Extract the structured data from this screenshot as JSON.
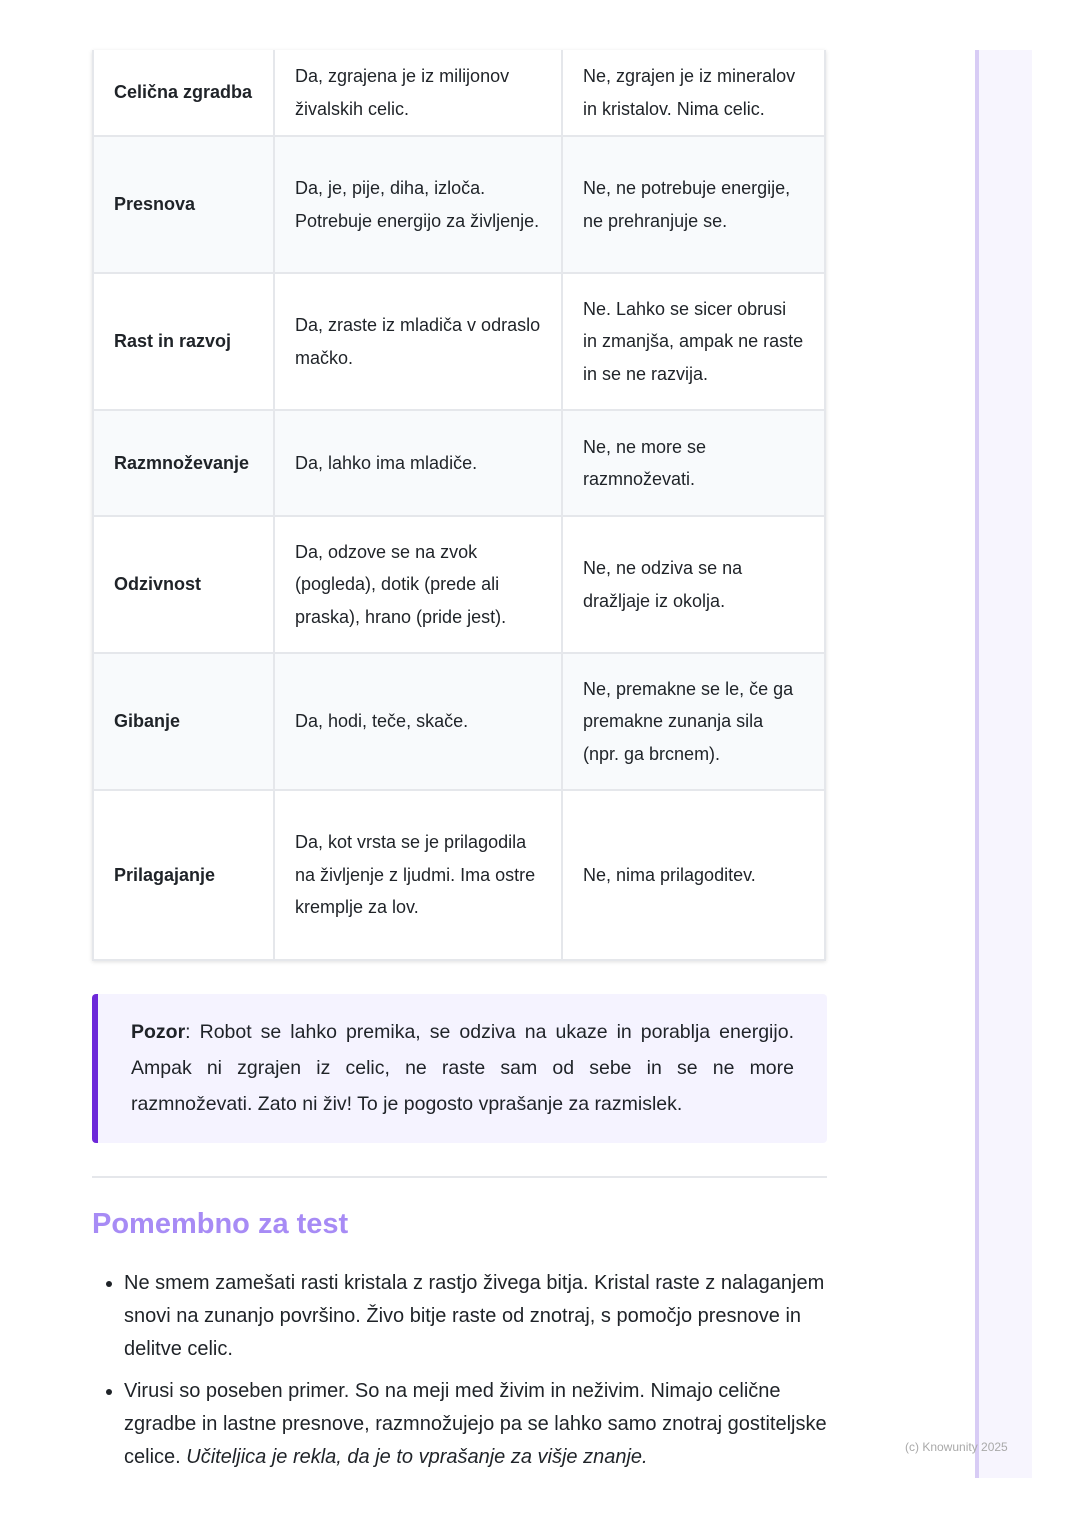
{
  "table": {
    "rows": [
      {
        "property": "Celična zgradba",
        "cat": "Da, zgrajena je iz milijonov živalskih celic.",
        "stone": "Ne, zgrajen je iz mineralov in kristalov. Nima celic.",
        "h": 86
      },
      {
        "property": "Presnova",
        "cat": "Da, je, pije, diha, izloča. Potrebuje energijo za življenje.",
        "stone": "Ne, ne potrebuje energije, ne prehranjuje se.",
        "h": 137
      },
      {
        "property": "Rast in razvoj",
        "cat": "Da, zraste iz mladiča v odraslo mačko.",
        "stone": "Ne. Lahko se sicer obrusi in zmanjša, ampak ne raste in se ne razvija.",
        "h": 137
      },
      {
        "property": "Razmnoževanje",
        "cat": "Da, lahko ima mladiče.",
        "stone": "Ne, ne more se razmnoževati.",
        "h": 106
      },
      {
        "property": "Odzivnost",
        "cat": "Da, odzove se na zvok (pogleda), dotik (prede ali praska), hrano (pride jest).",
        "stone": "Ne, ne odziva se na dražljaje iz okolja.",
        "h": 137
      },
      {
        "property": "Gibanje",
        "cat": "Da, hodi, teče, skače.",
        "stone": "Ne, premakne se le, če ga premakne zunanja sila (npr. ga brcnem).",
        "h": 137
      },
      {
        "property": "Prilagajanje",
        "cat": "Da, kot vrsta se je prilagodila na življenje z ljudmi. Ima ostre kremplje za lov.",
        "stone": "Ne, nima prilagoditev.",
        "h": 170
      }
    ]
  },
  "callout": {
    "label": "Pozor",
    "text": ": Robot se lahko premika, se odziva na ukaze in porablja energijo. Ampak ni zgrajen iz celic, ne raste sam od sebe in se ne more razmnoževati. Zato ni živ! To je pogosto vprašanje za razmislek."
  },
  "section": {
    "title": "Pomembno za test",
    "items": [
      {
        "text": "Ne smem zamešati rasti kristala z rastjo živega bitja. Kristal raste z nalaganjem snovi na zunanjo površino. Živo bitje raste od znotraj, s pomočjo presnove in delitve celic.",
        "italic": ""
      },
      {
        "text": "Virusi so poseben primer. So na meji med živim in neživim. Nimajo celične zgradbe in lastne presnove, razmnožujejo pa se lahko samo znotraj gostiteljske celice. ",
        "italic": "Učiteljica je rekla, da je to vprašanje za višje znanje."
      }
    ]
  },
  "footer": "(c) Knowunity 2025"
}
